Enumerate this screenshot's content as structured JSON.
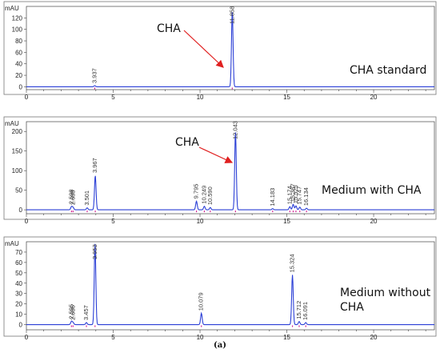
{
  "caption": "(a)",
  "chart_data": [
    {
      "type": "line",
      "yunit": "mAU",
      "annotation": "CHA standard",
      "arrow_label": "CHA",
      "xlim": [
        0,
        23.5
      ],
      "ylim": [
        -5,
        140
      ],
      "xticks": [
        0,
        5,
        10,
        15,
        20
      ],
      "yticks": [
        0,
        20,
        40,
        60,
        80,
        100,
        120
      ],
      "peaks": [
        {
          "rt": 3.937,
          "label": "3.937",
          "height": 2
        },
        {
          "rt": 11.858,
          "label": "11.858",
          "height": 132
        }
      ]
    },
    {
      "type": "line",
      "yunit": "mAU",
      "annotation": "Medium with CHA",
      "arrow_label": "CHA",
      "xlim": [
        0,
        23.5
      ],
      "ylim": [
        -10,
        225
      ],
      "xticks": [
        0,
        5,
        10,
        15,
        20
      ],
      "yticks": [
        0,
        50,
        100,
        150,
        200
      ],
      "peaks": [
        {
          "rt": 2.598,
          "label": "2.598",
          "height": 8
        },
        {
          "rt": 2.688,
          "label": "2.688",
          "height": 6
        },
        {
          "rt": 3.501,
          "label": "3.501",
          "height": 5
        },
        {
          "rt": 3.967,
          "label": "3.967",
          "height": 88
        },
        {
          "rt": 9.795,
          "label": "9.795",
          "height": 22
        },
        {
          "rt": 10.249,
          "label": "10.249",
          "height": 9
        },
        {
          "rt": 10.59,
          "label": "10.590",
          "height": 6
        },
        {
          "rt": 12.043,
          "label": "12.043",
          "height": 200
        },
        {
          "rt": 14.183,
          "label": "14.183",
          "height": 3
        },
        {
          "rt": 15.174,
          "label": "15.174",
          "height": 8
        },
        {
          "rt": 15.367,
          "label": "15.367",
          "height": 14
        },
        {
          "rt": 15.525,
          "label": "15.525",
          "height": 10
        },
        {
          "rt": 15.747,
          "label": "15.747",
          "height": 7
        },
        {
          "rt": 16.134,
          "label": "16.134",
          "height": 4
        }
      ]
    },
    {
      "type": "line",
      "yunit": "mAU",
      "annotation": "Medium without CHA",
      "xlim": [
        0,
        23.5
      ],
      "ylim": [
        -5,
        80
      ],
      "xticks": [
        0,
        5,
        10,
        15,
        20
      ],
      "yticks": [
        0,
        10,
        20,
        30,
        40,
        50,
        60,
        70
      ],
      "peaks": [
        {
          "rt": 2.595,
          "label": "2.595",
          "height": 3
        },
        {
          "rt": 2.686,
          "label": "2.686",
          "height": 2
        },
        {
          "rt": 3.457,
          "label": "3.457",
          "height": 2
        },
        {
          "rt": 3.953,
          "label": "3.953",
          "height": 78
        },
        {
          "rt": 10.079,
          "label": "10.079",
          "height": 11
        },
        {
          "rt": 15.324,
          "label": "15.324",
          "height": 48
        },
        {
          "rt": 15.712,
          "label": "15.712",
          "height": 3
        },
        {
          "rt": 16.091,
          "label": "16.091",
          "height": 2
        }
      ]
    }
  ]
}
